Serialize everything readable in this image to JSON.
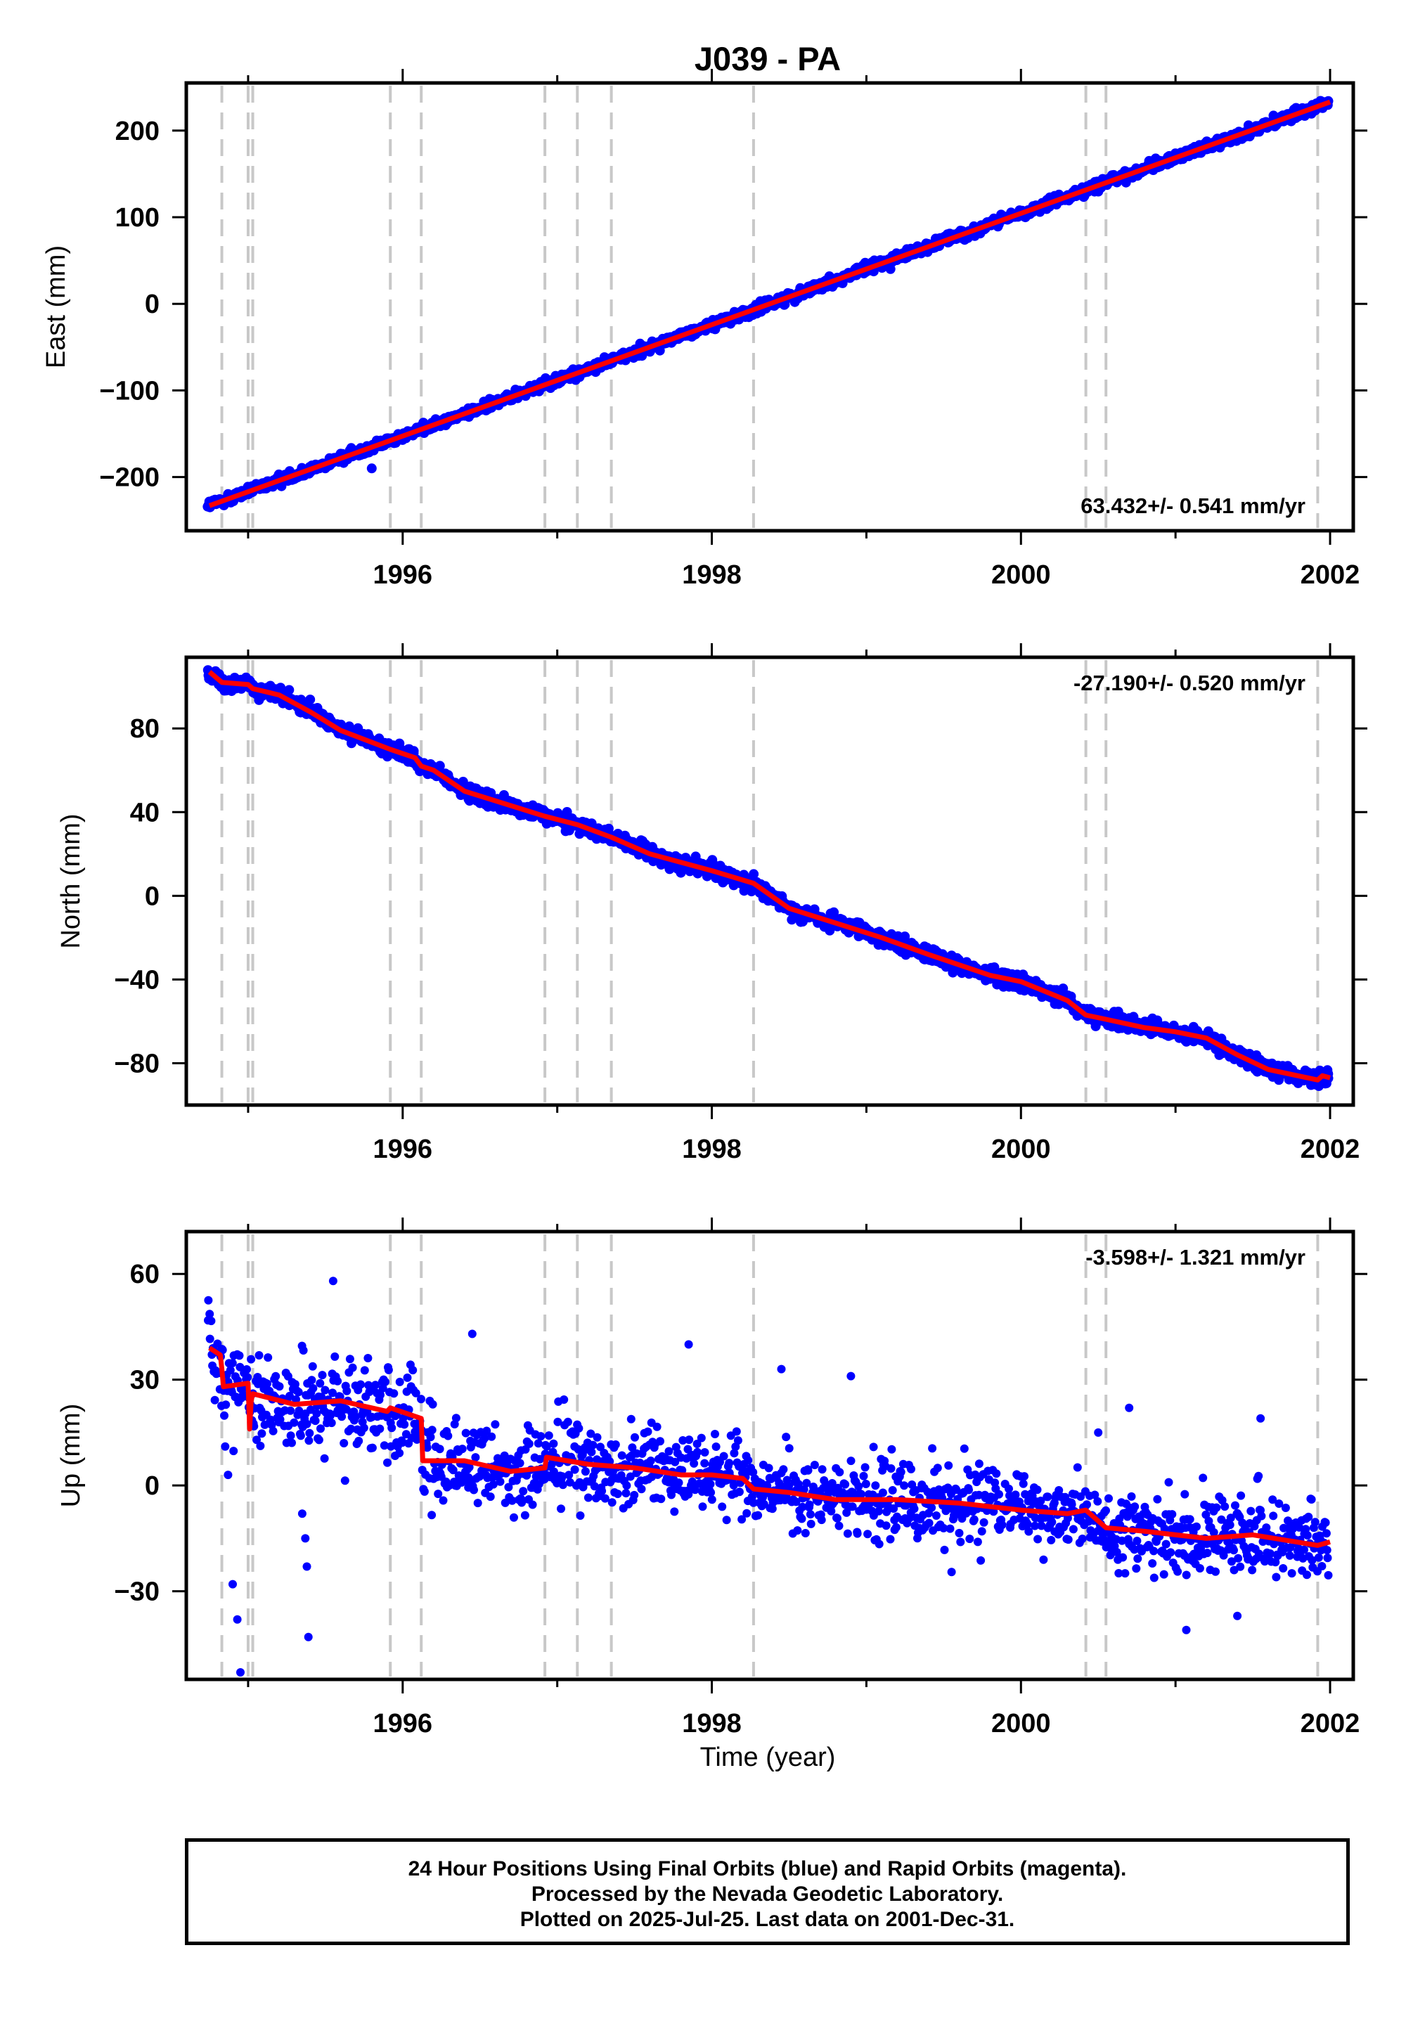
{
  "title": "J039 - PA",
  "xlabel": "Time (year)",
  "x_ticks": [
    1996,
    1998,
    2000,
    2002
  ],
  "x_ticks_label": [
    "1996",
    "1998",
    "2000",
    "2002"
  ],
  "xlim": [
    1994.6,
    2002.15
  ],
  "event_lines": [
    1994.83,
    1995.0,
    1995.03,
    1995.92,
    1996.12,
    1996.92,
    1997.13,
    1997.35,
    1998.27,
    2000.42,
    2000.55,
    2001.92
  ],
  "colors": {
    "data": "#0000ff",
    "model": "#ff0000",
    "event": "#c8c8c8"
  },
  "chart_data": [
    {
      "type": "scatter",
      "ylabel": "East (mm)",
      "ylim": [
        -262,
        255
      ],
      "y_ticks": [
        -200,
        -100,
        0,
        100,
        200
      ],
      "y_ticks_label": [
        "−200",
        "−100",
        "0",
        "100",
        "200"
      ],
      "rate": "63.432+/- 0.541 mm/yr",
      "rate_position": "bottom-right",
      "model": {
        "x": [
          1994.75,
          2002.0
        ],
        "y": [
          -233,
          233
        ]
      },
      "noise_mm": 4,
      "outliers": [
        [
          1995.8,
          -190
        ]
      ]
    },
    {
      "type": "scatter",
      "ylabel": "North (mm)",
      "ylim": [
        -100,
        114
      ],
      "y_ticks": [
        -80,
        -40,
        0,
        40,
        80
      ],
      "y_ticks_label": [
        "−80",
        "−40",
        "0",
        "40",
        "80"
      ],
      "rate": "-27.190+/- 0.520 mm/yr",
      "rate_position": "top-right",
      "model": {
        "x": [
          1994.75,
          1994.83,
          1995.0,
          1995.03,
          1995.2,
          1995.4,
          1995.6,
          1995.92,
          1996.08,
          1996.12,
          1996.2,
          1996.4,
          1996.92,
          1997.13,
          1997.35,
          1997.6,
          1998.0,
          1998.27,
          1998.5,
          1998.8,
          1999.1,
          1999.4,
          1999.8,
          2000.0,
          2000.3,
          2000.42,
          2000.55,
          2000.8,
          2001.0,
          2001.2,
          2001.4,
          2001.6,
          2001.92,
          2001.95,
          2002.0
        ],
        "y": [
          107,
          102,
          101,
          99,
          96,
          88,
          79,
          70,
          66,
          62,
          60,
          50,
          38,
          34,
          28,
          20,
          12,
          6,
          -6,
          -13,
          -20,
          -28,
          -38,
          -41,
          -50,
          -57,
          -59,
          -63,
          -65,
          -68,
          -76,
          -83,
          -88,
          -86,
          -87
        ]
      },
      "noise_mm": 2.5,
      "outliers": []
    },
    {
      "type": "scatter",
      "ylabel": "Up (mm)",
      "ylim": [
        -55,
        72
      ],
      "y_ticks": [
        -30,
        0,
        30,
        60
      ],
      "y_ticks_label": [
        "−30",
        "0",
        "30",
        "60"
      ],
      "rate": "-3.598+/- 1.321 mm/yr",
      "rate_position": "top-right",
      "model": {
        "x": [
          1994.75,
          1994.82,
          1994.83,
          1994.84,
          1995.0,
          1995.01,
          1995.02,
          1995.03,
          1995.3,
          1995.6,
          1995.9,
          1995.92,
          1996.12,
          1996.13,
          1996.4,
          1996.7,
          1996.92,
          1996.93,
          1997.2,
          1997.5,
          1997.8,
          1998.0,
          1998.2,
          1998.27,
          1998.5,
          1998.8,
          1999.2,
          1999.6,
          2000.0,
          2000.3,
          2000.42,
          2000.55,
          2000.8,
          2001.2,
          2001.5,
          2001.92,
          2002.0
        ],
        "y": [
          39,
          37,
          33,
          28,
          29,
          16,
          24,
          26,
          23,
          24,
          21,
          22,
          19,
          7,
          7,
          4,
          5,
          8,
          6,
          5,
          3,
          3,
          2,
          -1,
          -2,
          -4,
          -4,
          -5,
          -7,
          -8,
          -7,
          -12,
          -13,
          -15,
          -14,
          -17,
          -16
        ]
      },
      "noise_mm": 8,
      "outliers": [
        [
          1994.87,
          3
        ],
        [
          1994.9,
          -28
        ],
        [
          1994.93,
          -38
        ],
        [
          1994.95,
          -53
        ],
        [
          1995.35,
          -8
        ],
        [
          1995.37,
          -15
        ],
        [
          1995.38,
          -23
        ],
        [
          1995.39,
          -43
        ],
        [
          1995.55,
          58
        ],
        [
          1996.45,
          43
        ],
        [
          1997.85,
          40
        ],
        [
          1998.9,
          31
        ],
        [
          2000.7,
          22
        ],
        [
          2001.55,
          19
        ],
        [
          2001.07,
          -41
        ],
        [
          2001.4,
          -37
        ],
        [
          2000.5,
          15
        ],
        [
          1998.45,
          33
        ]
      ]
    }
  ],
  "footer": {
    "line1": "24 Hour Positions Using Final Orbits (blue) and Rapid Orbits (magenta).",
    "line2": "Processed by the Nevada Geodetic Laboratory.",
    "line3": "Plotted on 2025-Jul-25. Last data on 2001-Dec-31."
  }
}
